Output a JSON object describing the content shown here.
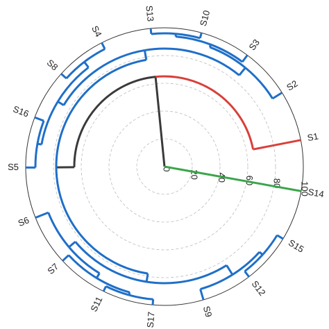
{
  "chart_data": {
    "type": "dendrogram",
    "layout": "circular",
    "leaves": [
      "S1",
      "S2",
      "S3",
      "S10",
      "S13",
      "S4",
      "S8",
      "S16",
      "S5",
      "S6",
      "S7",
      "S11",
      "S17",
      "S9",
      "S12",
      "S15",
      "S14"
    ],
    "rlim": [
      0,
      100
    ],
    "rticks": [
      0,
      20,
      40,
      60,
      80,
      100
    ],
    "grid": true,
    "tree": {
      "height": 0,
      "children": [
        {
          "height": 65,
          "color": "#3a3a3a",
          "children": [
            {
              "leaf": 0,
              "color": "#d8403a"
            },
            {
              "height": 78,
              "color": "#3a3a3a",
              "children": [
                {
                  "height": 85,
                  "color": "#1f6fc8",
                  "children": [
                    {
                      "height": 92,
                      "children": [
                        {
                          "leaf": 1
                        },
                        {
                          "height": 94,
                          "children": [
                            {
                              "leaf": 2
                            },
                            {
                              "height": 96,
                              "children": [
                                {
                                  "leaf": 3
                                },
                                {
                                  "leaf": 4
                                }
                              ]
                            }
                          ]
                        }
                      ]
                    },
                    {
                      "height": 90,
                      "children": [
                        {
                          "height": 95,
                          "children": [
                            {
                              "leaf": 5
                            },
                            {
                              "leaf": 6
                            }
                          ]
                        },
                        {
                          "height": 93,
                          "children": [
                            {
                              "leaf": 7
                            },
                            {
                              "leaf": 8
                            }
                          ]
                        }
                      ]
                    }
                  ]
                },
                {
                  "height": 84,
                  "color": "#1f6fc8",
                  "children": [
                    {
                      "height": 90,
                      "children": [
                        {
                          "leaf": 9
                        },
                        {
                          "height": 94,
                          "children": [
                            {
                              "leaf": 10
                            },
                            {
                              "height": 96,
                              "children": [
                                {
                                  "leaf": 11
                                },
                                {
                                  "leaf": 12
                                }
                              ]
                            }
                          ]
                        }
                      ]
                    },
                    {
                      "height": 92,
                      "children": [
                        {
                          "leaf": 13
                        },
                        {
                          "height": 95,
                          "children": [
                            {
                              "leaf": 14
                            },
                            {
                              "leaf": 15
                            }
                          ]
                        }
                      ]
                    }
                  ]
                }
              ]
            }
          ]
        },
        {
          "leaf": 16,
          "color": "#3aa64a"
        }
      ]
    }
  }
}
